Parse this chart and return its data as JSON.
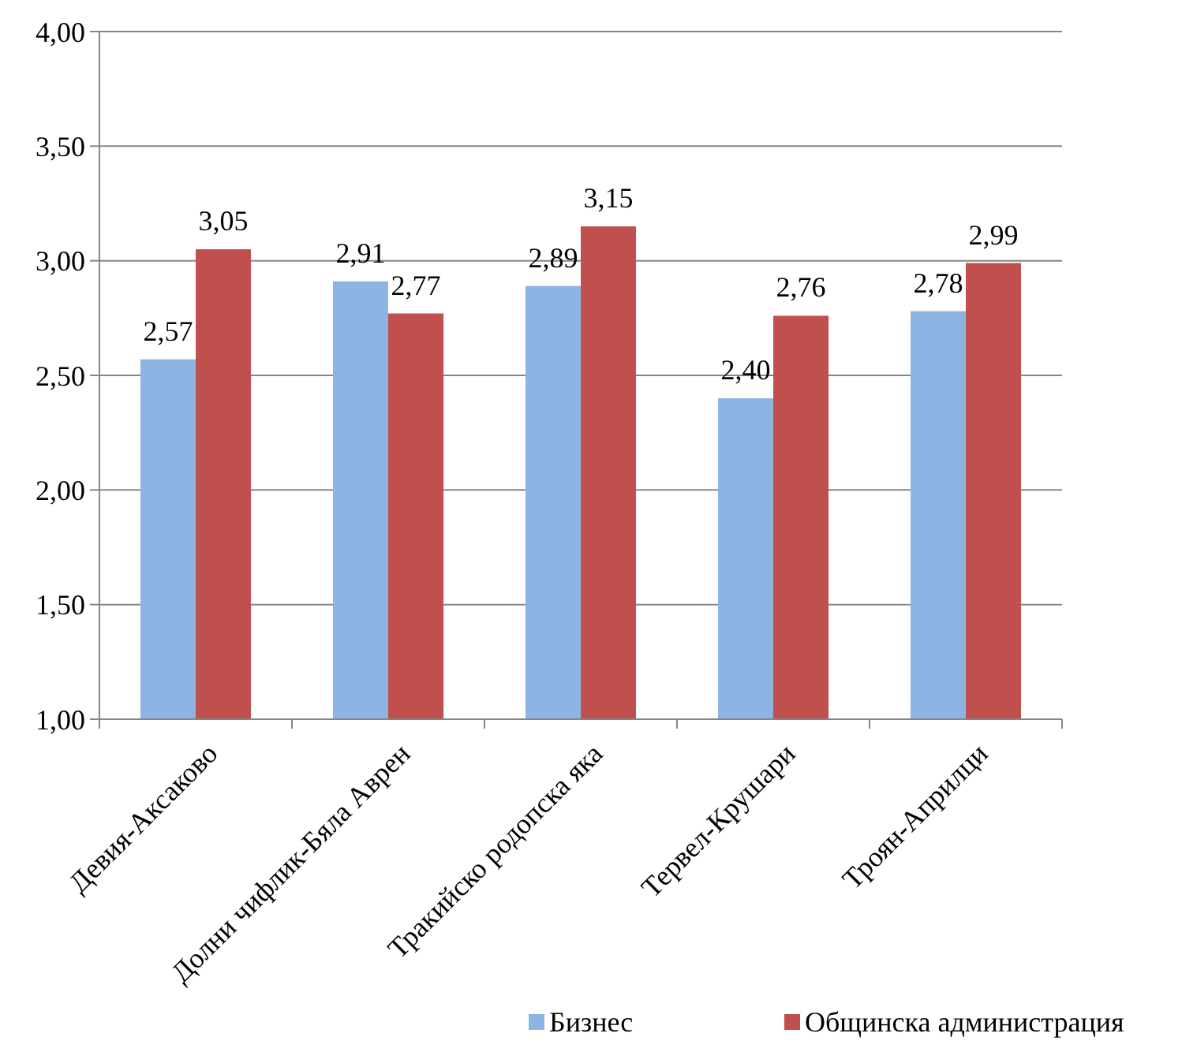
{
  "chart_data": {
    "type": "bar",
    "categories": [
      "Девия-Аксаково",
      "Долни чифлик-Бяла Аврен",
      "Тракийско родопска яка",
      "Тервел-Крушари",
      "Троян-Априлци"
    ],
    "series": [
      {
        "name": "Бизнес",
        "color": "#8eb4e3",
        "values": [
          2.57,
          2.91,
          2.89,
          2.4,
          2.78
        ],
        "value_labels": [
          "2,57",
          "2,91",
          "2,89",
          "2,40",
          "2,78"
        ]
      },
      {
        "name": "Общинска администрация",
        "color": "#c0504d",
        "values": [
          3.05,
          2.77,
          3.15,
          2.76,
          2.99
        ],
        "value_labels": [
          "3,05",
          "2,77",
          "3,15",
          "2,76",
          "2,99"
        ]
      }
    ],
    "ylim": [
      1,
      4
    ],
    "yticks": [
      {
        "value": 1,
        "label": "1,00"
      },
      {
        "value": 1.5,
        "label": "1,50"
      },
      {
        "value": 2,
        "label": "2,00"
      },
      {
        "value": 2.5,
        "label": "2,50"
      },
      {
        "value": 3,
        "label": "3,00"
      },
      {
        "value": 3.5,
        "label": "3,50"
      },
      {
        "value": 4,
        "label": "4,00"
      }
    ],
    "grid": "y",
    "legend": "bottom"
  }
}
